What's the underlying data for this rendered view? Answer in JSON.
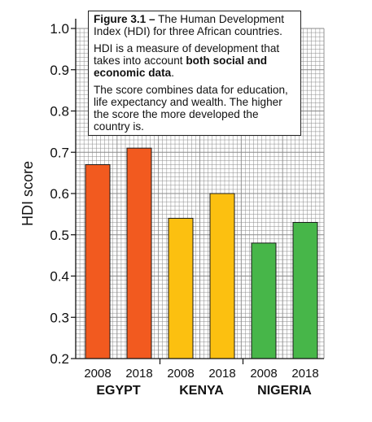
{
  "chart_data": {
    "type": "bar",
    "ylabel": "HDI score",
    "ylim": [
      0.2,
      1.0
    ],
    "yticks": [
      "0.2",
      "0.3",
      "0.4",
      "0.5",
      "0.6",
      "0.7",
      "0.8",
      "0.9",
      "1.0"
    ],
    "grid": true,
    "groups": [
      {
        "name": "EGYPT",
        "color": "#f25a1f",
        "bars": [
          {
            "year": "2008",
            "value": 0.67
          },
          {
            "year": "2018",
            "value": 0.71
          }
        ]
      },
      {
        "name": "KENYA",
        "color": "#fcc010",
        "bars": [
          {
            "year": "2008",
            "value": 0.54
          },
          {
            "year": "2018",
            "value": 0.6
          }
        ]
      },
      {
        "name": "NIGERIA",
        "color": "#47b649",
        "bars": [
          {
            "year": "2008",
            "value": 0.48
          },
          {
            "year": "2018",
            "value": 0.53
          }
        ]
      }
    ],
    "note": {
      "fig_label": "Figure 3.1 –",
      "fig_title": "The Human Development Index (HDI) for three African countries.",
      "p2_start": "HDI is a measure of development that takes into account ",
      "p2_bold": "both social and economic data",
      "p2_end": ".",
      "p3": "The score combines data for education, life expectancy and wealth. The higher the score the more developed the country is."
    }
  }
}
